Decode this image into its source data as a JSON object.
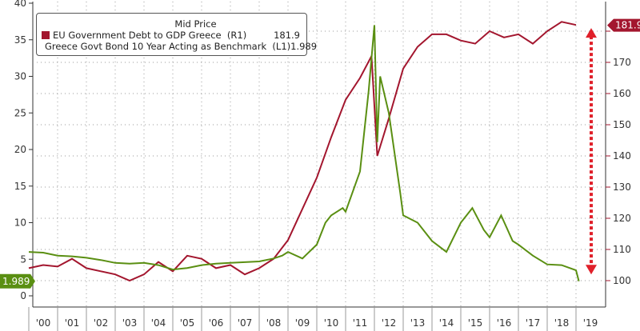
{
  "chart_data": {
    "type": "line",
    "legend_title": "Mid Price",
    "legend_placement": "top-left",
    "x_ticks": [
      "'00",
      "'01",
      "'02",
      "'03",
      "'04",
      "'05",
      "'06",
      "'07",
      "'08",
      "'09",
      "'10",
      "'11",
      "'12",
      "'13",
      "'14",
      "'15",
      "'16",
      "'17",
      "'18",
      "'19"
    ],
    "left_axis": {
      "ylim": [
        -2,
        40
      ],
      "ticks": [
        "0",
        "5",
        "10",
        "15",
        "20",
        "25",
        "30",
        "35",
        "40"
      ]
    },
    "right_axis": {
      "ylim": [
        94,
        194
      ],
      "ticks": [
        "100",
        "110",
        "120",
        "130",
        "140",
        "150",
        "160",
        "170"
      ]
    },
    "grid": true,
    "series": [
      {
        "name": "EU Government Debt to GDP Greece",
        "axis_label": "(R1)",
        "axis": "right",
        "color": "#a3162e",
        "last_value": "181.9",
        "x": [
          2000,
          2000.5,
          2001,
          2001.5,
          2002,
          2002.5,
          2003,
          2003.5,
          2004,
          2004.5,
          2005,
          2005.5,
          2006,
          2006.5,
          2007,
          2007.5,
          2008,
          2008.5,
          2009,
          2009.5,
          2010,
          2010.5,
          2011,
          2011.5,
          2011.9,
          2012.1,
          2012.5,
          2013,
          2013.5,
          2014,
          2014.5,
          2015,
          2015.5,
          2016,
          2016.5,
          2017,
          2017.5,
          2018,
          2018.5,
          2019
        ],
        "y": [
          104,
          105,
          104.5,
          107,
          104,
          103,
          102,
          100,
          102,
          106,
          103,
          108,
          107,
          104,
          105,
          102,
          104,
          107,
          113,
          123,
          133,
          146,
          158,
          165,
          172,
          140,
          152,
          168,
          175,
          179,
          179,
          177,
          176,
          180,
          178,
          179,
          176,
          180,
          183,
          182
        ]
      },
      {
        "name": "Greece Govt Bond 10 Year Acting as Benchmark",
        "axis_label": "(L1)",
        "axis": "left",
        "color": "#5a8f12",
        "last_value": "1.989",
        "x": [
          2000,
          2000.5,
          2001,
          2001.5,
          2002,
          2002.5,
          2003,
          2003.5,
          2004,
          2004.5,
          2005,
          2005.5,
          2006,
          2006.5,
          2007,
          2007.5,
          2008,
          2008.5,
          2008.8,
          2009,
          2009.5,
          2010,
          2010.3,
          2010.5,
          2010.9,
          2011,
          2011.5,
          2011.8,
          2012,
          2012.1,
          2012.2,
          2012.5,
          2012.9,
          2013,
          2013.5,
          2014,
          2014.5,
          2015,
          2015.4,
          2015.8,
          2016,
          2016.4,
          2016.8,
          2017,
          2017.5,
          2018,
          2018.5,
          2019,
          2019.1
        ],
        "y": [
          6,
          5.9,
          5.5,
          5.4,
          5.2,
          4.9,
          4.5,
          4.4,
          4.5,
          4.2,
          3.6,
          3.8,
          4.2,
          4.4,
          4.5,
          4.6,
          4.7,
          5.1,
          5.5,
          6,
          5.1,
          7,
          10,
          11,
          12,
          11.5,
          17,
          28,
          37,
          21,
          30,
          25,
          14,
          11,
          10,
          7.5,
          6,
          10,
          12,
          9,
          8,
          11,
          7.5,
          7,
          5.5,
          4.3,
          4.2,
          3.5,
          2.0
        ]
      }
    ],
    "annotation_arrow": "between 181.9 and 100 (right axis)"
  }
}
